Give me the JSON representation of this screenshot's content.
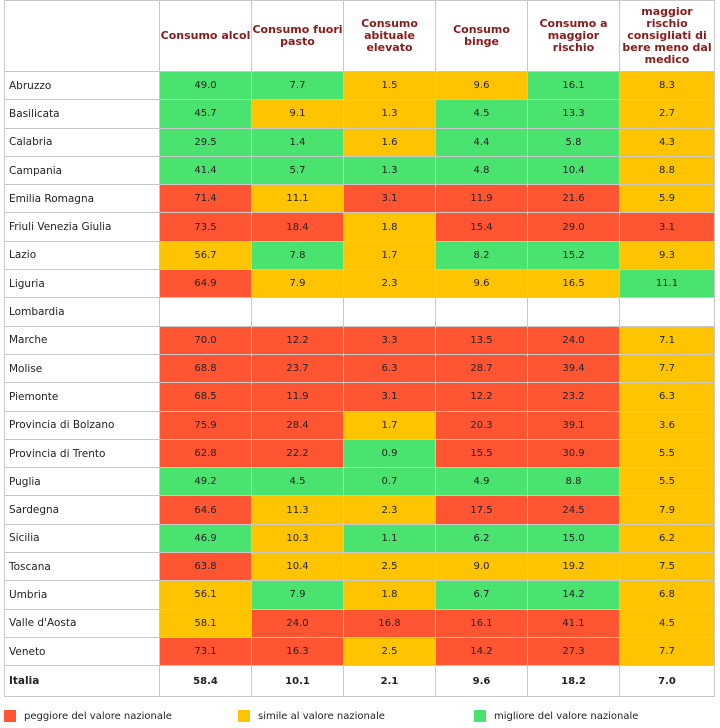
{
  "headers": [
    "Consumo alcol",
    "Consumo fuori pasto",
    "Consumo abituale elevato",
    "Consumo binge",
    "Consumo a maggior rischio",
    "maggior rischio consigliati di bere meno dal medico"
  ],
  "rows": [
    {
      "region": "Abruzzo",
      "values": [
        "49.0",
        "7.7",
        "1.5",
        "9.6",
        "16.1",
        "8.3"
      ],
      "status": [
        "b",
        "b",
        "s",
        "s",
        "b",
        "s"
      ]
    },
    {
      "region": "Basilicata",
      "values": [
        "45.7",
        "9.1",
        "1.3",
        "4.5",
        "13.3",
        "2.7"
      ],
      "status": [
        "b",
        "s",
        "s",
        "b",
        "b",
        "s"
      ]
    },
    {
      "region": "Calabria",
      "values": [
        "29.5",
        "1.4",
        "1.6",
        "4.4",
        "5.8",
        "4.3"
      ],
      "status": [
        "b",
        "b",
        "s",
        "b",
        "b",
        "s"
      ]
    },
    {
      "region": "Campania",
      "values": [
        "41.4",
        "5.7",
        "1.3",
        "4.8",
        "10.4",
        "8.8"
      ],
      "status": [
        "b",
        "b",
        "b",
        "b",
        "b",
        "s"
      ]
    },
    {
      "region": "Emilia Romagna",
      "values": [
        "71.4",
        "11.1",
        "3.1",
        "11.9",
        "21.6",
        "5.9"
      ],
      "status": [
        "w",
        "s",
        "w",
        "w",
        "w",
        "s"
      ]
    },
    {
      "region": "Friuli Venezia Giulia",
      "values": [
        "73.5",
        "18.4",
        "1.8",
        "15.4",
        "29.0",
        "3.1"
      ],
      "status": [
        "w",
        "w",
        "s",
        "w",
        "w",
        "w"
      ]
    },
    {
      "region": "Lazio",
      "values": [
        "56.7",
        "7.8",
        "1.7",
        "8.2",
        "15.2",
        "9.3"
      ],
      "status": [
        "s",
        "b",
        "s",
        "b",
        "b",
        "s"
      ]
    },
    {
      "region": "Liguria",
      "values": [
        "64.9",
        "7.9",
        "2.3",
        "9.6",
        "16.5",
        "11.1"
      ],
      "status": [
        "w",
        "s",
        "s",
        "s",
        "s",
        "b"
      ]
    },
    {
      "region": "Lombardia",
      "values": [
        "",
        "",
        "",
        "",
        "",
        ""
      ],
      "status": [
        "n",
        "n",
        "n",
        "n",
        "n",
        "n"
      ]
    },
    {
      "region": "Marche",
      "values": [
        "70.0",
        "12.2",
        "3.3",
        "13.5",
        "24.0",
        "7.1"
      ],
      "status": [
        "w",
        "w",
        "w",
        "w",
        "w",
        "s"
      ]
    },
    {
      "region": "Molise",
      "values": [
        "68.8",
        "23.7",
        "6.3",
        "28.7",
        "39.4",
        "7.7"
      ],
      "status": [
        "w",
        "w",
        "w",
        "w",
        "w",
        "s"
      ]
    },
    {
      "region": "Piemonte",
      "values": [
        "68.5",
        "11.9",
        "3.1",
        "12.2",
        "23.2",
        "6.3"
      ],
      "status": [
        "w",
        "w",
        "w",
        "w",
        "w",
        "s"
      ]
    },
    {
      "region": "Provincia di Bolzano",
      "values": [
        "75.9",
        "28.4",
        "1.7",
        "20.3",
        "39.1",
        "3.6"
      ],
      "status": [
        "w",
        "w",
        "s",
        "w",
        "w",
        "s"
      ]
    },
    {
      "region": "Provincia di Trento",
      "values": [
        "62.8",
        "22.2",
        "0.9",
        "15.5",
        "30.9",
        "5.5"
      ],
      "status": [
        "w",
        "w",
        "b",
        "w",
        "w",
        "s"
      ]
    },
    {
      "region": "Puglia",
      "values": [
        "49.2",
        "4.5",
        "0.7",
        "4.9",
        "8.8",
        "5.5"
      ],
      "status": [
        "b",
        "b",
        "b",
        "b",
        "b",
        "s"
      ]
    },
    {
      "region": "Sardegna",
      "values": [
        "64.6",
        "11.3",
        "2.3",
        "17.5",
        "24.5",
        "7.9"
      ],
      "status": [
        "w",
        "s",
        "s",
        "w",
        "w",
        "s"
      ]
    },
    {
      "region": "Sicilia",
      "values": [
        "46.9",
        "10.3",
        "1.1",
        "6.2",
        "15.0",
        "6.2"
      ],
      "status": [
        "b",
        "s",
        "b",
        "b",
        "b",
        "s"
      ]
    },
    {
      "region": "Toscana",
      "values": [
        "63.8",
        "10.4",
        "2.5",
        "9.0",
        "19.2",
        "7.5"
      ],
      "status": [
        "w",
        "s",
        "s",
        "s",
        "s",
        "s"
      ]
    },
    {
      "region": "Umbria",
      "values": [
        "56.1",
        "7.9",
        "1.8",
        "6.7",
        "14.2",
        "6.8"
      ],
      "status": [
        "s",
        "b",
        "s",
        "b",
        "b",
        "s"
      ]
    },
    {
      "region": "Valle d'Aosta",
      "values": [
        "58.1",
        "24.0",
        "16.8",
        "16.1",
        "41.1",
        "4.5"
      ],
      "status": [
        "s",
        "w",
        "w",
        "w",
        "w",
        "s"
      ]
    },
    {
      "region": "Veneto",
      "values": [
        "73.1",
        "16.3",
        "2.5",
        "14.2",
        "27.3",
        "7.7"
      ],
      "status": [
        "w",
        "w",
        "s",
        "w",
        "w",
        "s"
      ]
    }
  ],
  "total": {
    "region": "Italia",
    "values": [
      "58.4",
      "10.1",
      "2.1",
      "9.6",
      "18.2",
      "7.0"
    ]
  },
  "legend": [
    {
      "label": "peggiore del valore nazionale",
      "color": "#ff5533"
    },
    {
      "label": "simile al valore nazionale",
      "color": "#ffc400"
    },
    {
      "label": "migliore del valore nazionale",
      "color": "#4be36f"
    }
  ],
  "colors": {
    "w": "#ff5533",
    "s": "#ffc400",
    "b": "#4be36f",
    "header_text": "#8b1a1a"
  }
}
